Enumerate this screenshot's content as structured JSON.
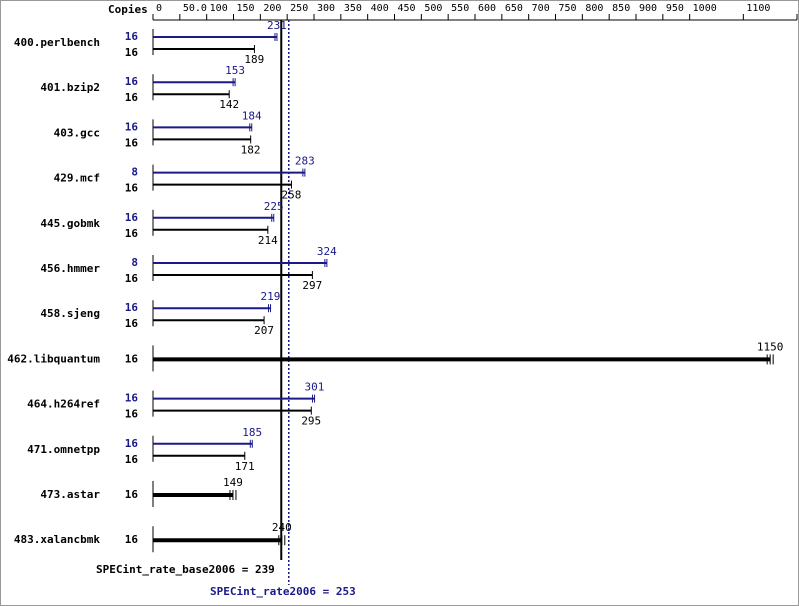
{
  "chart_data": {
    "type": "bar",
    "orientation": "horizontal",
    "axis_label": "Copies",
    "categories": [
      "400.perlbench",
      "401.bzip2",
      "403.gcc",
      "429.mcf",
      "445.gobmk",
      "456.hmmer",
      "458.sjeng",
      "462.libquantum",
      "464.h264ref",
      "471.omnetpp",
      "473.astar",
      "483.xalancbmk"
    ],
    "series": [
      {
        "color": "#191988",
        "copies": [
          16,
          16,
          16,
          8,
          16,
          8,
          16,
          null,
          16,
          16,
          null,
          null
        ],
        "values": [
          231,
          153,
          184,
          283,
          225,
          324,
          219,
          null,
          301,
          185,
          null,
          null
        ]
      },
      {
        "color": "#000000",
        "copies": [
          16,
          16,
          16,
          16,
          16,
          16,
          16,
          16,
          16,
          16,
          16,
          16
        ],
        "values": [
          189,
          142,
          182,
          258,
          214,
          297,
          207,
          1150,
          295,
          171,
          149,
          240
        ]
      }
    ],
    "xlim": [
      0,
      1200
    ],
    "xticks": [
      0,
      {
        "value": 50,
        "label": "50.0"
      },
      100,
      150,
      200,
      250,
      300,
      350,
      400,
      450,
      500,
      550,
      600,
      650,
      700,
      750,
      800,
      850,
      900,
      950,
      1000,
      1100,
      1200
    ],
    "references": [
      {
        "label": "SPECint_rate_base2006 = 239",
        "value": 239,
        "color": "#000000",
        "style": "solid"
      },
      {
        "label": "SPECint_rate2006 = 253",
        "value": 253,
        "color": "#191988",
        "style": "dotted"
      }
    ]
  }
}
